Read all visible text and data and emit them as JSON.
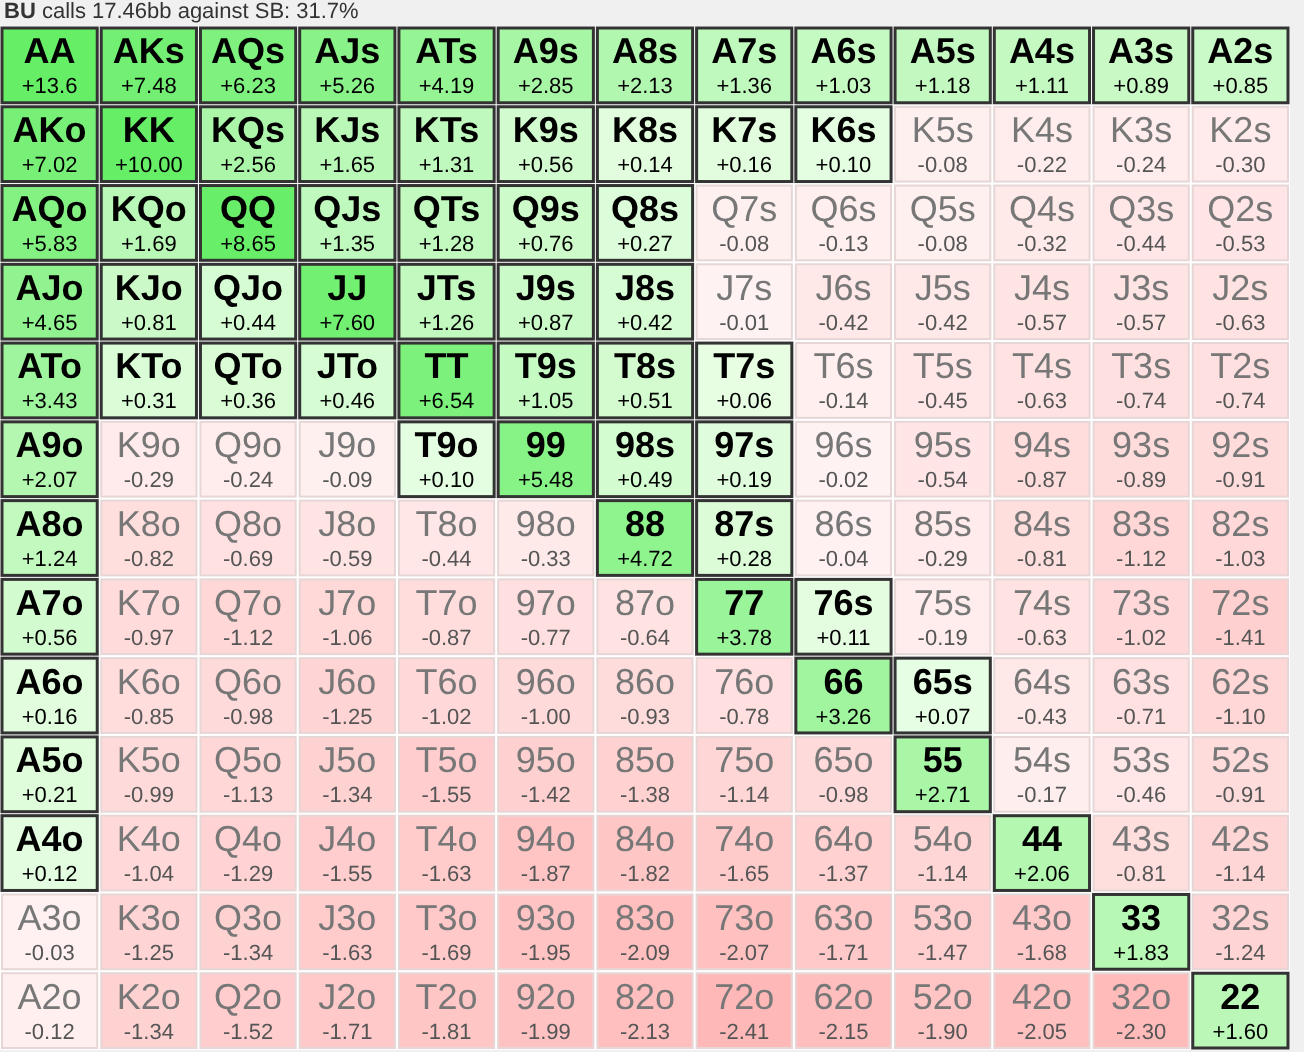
{
  "chart_data": {
    "type": "heatmap",
    "title": "BU calls 17.46bb against SB: 31.7%",
    "categories": [
      null,
      null,
      null,
      null,
      null,
      null,
      null,
      null,
      null,
      null,
      null,
      null,
      null
    ],
    "y_categories": [
      null,
      null,
      null,
      null,
      null,
      null,
      null,
      null,
      null,
      null,
      null,
      null,
      null
    ],
    "cells": [
      [
        13.6,
        7.48,
        6.23,
        5.26,
        4.19,
        2.85,
        2.13,
        1.36,
        1.03,
        1.18,
        1.11,
        0.89,
        0.85
      ],
      [
        7.02,
        10.0,
        2.56,
        1.65,
        1.31,
        0.56,
        0.14,
        0.16,
        0.1,
        -0.08,
        -0.22,
        -0.24,
        -0.3
      ],
      [
        5.83,
        1.69,
        8.65,
        1.35,
        1.28,
        0.76,
        0.27,
        -0.08,
        -0.13,
        -0.08,
        -0.32,
        -0.44,
        -0.53
      ],
      [
        4.65,
        0.81,
        0.44,
        7.6,
        1.26,
        0.87,
        0.42,
        -0.01,
        -0.42,
        -0.42,
        -0.57,
        -0.57,
        -0.63
      ],
      [
        3.43,
        0.31,
        0.36,
        0.46,
        6.54,
        1.05,
        0.51,
        0.06,
        -0.14,
        -0.45,
        -0.63,
        -0.74,
        -0.74
      ],
      [
        2.07,
        -0.29,
        -0.24,
        -0.09,
        0.1,
        5.48,
        0.49,
        0.19,
        -0.02,
        -0.54,
        -0.87,
        -0.89,
        -0.91
      ],
      [
        1.24,
        -0.82,
        -0.69,
        -0.59,
        -0.44,
        -0.33,
        4.72,
        0.28,
        -0.04,
        -0.29,
        -0.81,
        -1.12,
        -1.03
      ],
      [
        0.56,
        -0.97,
        -1.12,
        -1.06,
        -0.87,
        -0.77,
        -0.64,
        3.78,
        0.11,
        -0.19,
        -0.63,
        -1.02,
        -1.41
      ],
      [
        0.16,
        -0.85,
        -0.98,
        -1.25,
        -1.02,
        -1.0,
        -0.93,
        -0.78,
        3.26,
        0.07,
        -0.43,
        -0.71,
        -1.1
      ],
      [
        0.21,
        -0.99,
        -1.13,
        -1.34,
        -1.55,
        -1.42,
        -1.38,
        -1.14,
        -0.98,
        2.71,
        -0.17,
        -0.46,
        -0.91
      ],
      [
        0.12,
        -1.04,
        -1.29,
        -1.55,
        -1.63,
        -1.87,
        -1.82,
        -1.65,
        -1.37,
        -1.14,
        2.06,
        -0.81,
        -1.14
      ],
      [
        -0.03,
        -1.25,
        -1.34,
        -1.63,
        -1.69,
        -1.95,
        -2.09,
        -2.07,
        -1.71,
        -1.47,
        -1.68,
        1.83,
        -1.24
      ],
      [
        -0.12,
        -1.34,
        -1.52,
        -1.71,
        -1.81,
        -1.99,
        -2.13,
        -2.41,
        -2.15,
        -1.9,
        -2.05,
        -2.3,
        1.6
      ]
    ],
    "cell_labels": [
      [
        "+13.6",
        "+7.48",
        "+6.23",
        "+5.26",
        "+4.19",
        "+2.85",
        "+2.13",
        "+1.36",
        "+1.03",
        "+1.18",
        "+1.11",
        "+0.89",
        "+0.85"
      ],
      [
        "+7.02",
        "+10.00",
        "+2.56",
        "+1.65",
        "+1.31",
        "+0.56",
        "+0.14",
        "+0.16",
        "+0.10",
        "-0.08",
        "-0.22",
        "-0.24",
        "-0.30"
      ],
      [
        "+5.83",
        "+1.69",
        "+8.65",
        "+1.35",
        "+1.28",
        "+0.76",
        "+0.27",
        "-0.08",
        "-0.13",
        "-0.08",
        "-0.32",
        "-0.44",
        "-0.53"
      ],
      [
        "+4.65",
        "+0.81",
        "+0.44",
        "+7.60",
        "+1.26",
        "+0.87",
        "+0.42",
        "-0.01",
        "-0.42",
        "-0.42",
        "-0.57",
        "-0.57",
        "-0.63"
      ],
      [
        "+3.43",
        "+0.31",
        "+0.36",
        "+0.46",
        "+6.54",
        "+1.05",
        "+0.51",
        "+0.06",
        "-0.14",
        "-0.45",
        "-0.63",
        "-0.74",
        "-0.74"
      ],
      [
        "+2.07",
        "-0.29",
        "-0.24",
        "-0.09",
        "+0.10",
        "+5.48",
        "+0.49",
        "+0.19",
        "-0.02",
        "-0.54",
        "-0.87",
        "-0.89",
        "-0.91"
      ],
      [
        "+1.24",
        "-0.82",
        "-0.69",
        "-0.59",
        "-0.44",
        "-0.33",
        "+4.72",
        "+0.28",
        "-0.04",
        "-0.29",
        "-0.81",
        "-1.12",
        "-1.03"
      ],
      [
        "+0.56",
        "-0.97",
        "-1.12",
        "-1.06",
        "-0.87",
        "-0.77",
        "-0.64",
        "+3.78",
        "+0.11",
        "-0.19",
        "-0.63",
        "-1.02",
        "-1.41"
      ],
      [
        "+0.16",
        "-0.85",
        "-0.98",
        "-1.25",
        "-1.02",
        "-1.00",
        "-0.93",
        "-0.78",
        "+3.26",
        "+0.07",
        "-0.43",
        "-0.71",
        "-1.10"
      ],
      [
        "+0.21",
        "-0.99",
        "-1.13",
        "-1.34",
        "-1.55",
        "-1.42",
        "-1.38",
        "-1.14",
        "-0.98",
        "+2.71",
        "-0.17",
        "-0.46",
        "-0.91"
      ],
      [
        "+0.12",
        "-1.04",
        "-1.29",
        "-1.55",
        "-1.63",
        "-1.87",
        "-1.82",
        "-1.65",
        "-1.37",
        "-1.14",
        "+2.06",
        "-0.81",
        "-1.14"
      ],
      [
        "-0.03",
        "-1.25",
        "-1.34",
        "-1.63",
        "-1.69",
        "-1.95",
        "-2.09",
        "-2.07",
        "-1.71",
        "-1.47",
        "-1.68",
        "+1.83",
        "-1.24"
      ],
      [
        "-0.12",
        "-1.34",
        "-1.52",
        "-1.71",
        "-1.81",
        "-1.99",
        "-2.13",
        "-2.41",
        "-2.15",
        "-1.90",
        "-2.05",
        "-2.30",
        "+1.60"
      ]
    ],
    "annotations": [
      "AA",
      "AKs",
      "AQs",
      "AJs",
      "ATs",
      "A9s",
      "A8s",
      "A7s",
      "A6s",
      "A5s",
      "A4s",
      "A3s",
      "A2s",
      "AKo",
      "KK",
      "KQs",
      "KJs",
      "KTs",
      "K9s",
      "K8s",
      "K7s",
      "K6s",
      "K5s",
      "K4s",
      "K3s",
      "K2s",
      "AQo",
      "KQo",
      "QQ",
      "QJs",
      "QTs",
      "Q9s",
      "Q8s",
      "Q7s",
      "Q6s",
      "Q5s",
      "Q4s",
      "Q3s",
      "Q2s",
      "AJo",
      "KJo",
      "QJo",
      "JJ",
      "JTs",
      "J9s",
      "J8s",
      "J7s",
      "J6s",
      "J5s",
      "J4s",
      "J3s",
      "J2s",
      "ATo",
      "KTo",
      "QTo",
      "JTo",
      "TT",
      "T9s",
      "T8s",
      "T7s",
      "T6s",
      "T5s",
      "T4s",
      "T3s",
      "T2s",
      "A9o",
      "K9o",
      "Q9o",
      "J9o",
      "T9o",
      "99",
      "98s",
      "97s",
      "96s",
      "95s",
      "94s",
      "93s",
      "92s",
      "A8o",
      "K8o",
      "Q8o",
      "J8o",
      "T8o",
      "98o",
      "88",
      "87s",
      "86s",
      "85s",
      "84s",
      "83s",
      "82s",
      "A7o",
      "K7o",
      "Q7o",
      "J7o",
      "T7o",
      "97o",
      "87o",
      "77",
      "76s",
      "75s",
      "74s",
      "73s",
      "72s",
      "A6o",
      "K6o",
      "Q6o",
      "J6o",
      "T6o",
      "96o",
      "86o",
      "76o",
      "66",
      "65s",
      "64s",
      "63s",
      "62s",
      "A5o",
      "K5o",
      "Q5o",
      "J5o",
      "T5o",
      "95o",
      "85o",
      "75o",
      "65o",
      "55",
      "54s",
      "53s",
      "52s",
      "A4o",
      "K4o",
      "Q4o",
      "J4o",
      "T4o",
      "94o",
      "84o",
      "74o",
      "64o",
      "54o",
      "44",
      "43s",
      "42s",
      "A3o",
      "K3o",
      "Q3o",
      "J3o",
      "T3o",
      "93o",
      "83o",
      "73o",
      "63o",
      "53o",
      "43o",
      "33",
      "32s",
      "A2o",
      "K2o",
      "Q2o",
      "J2o",
      "T2o",
      "92o",
      "82o",
      "72o",
      "62o",
      "52o",
      "42o",
      "32o",
      "22"
    ]
  }
}
